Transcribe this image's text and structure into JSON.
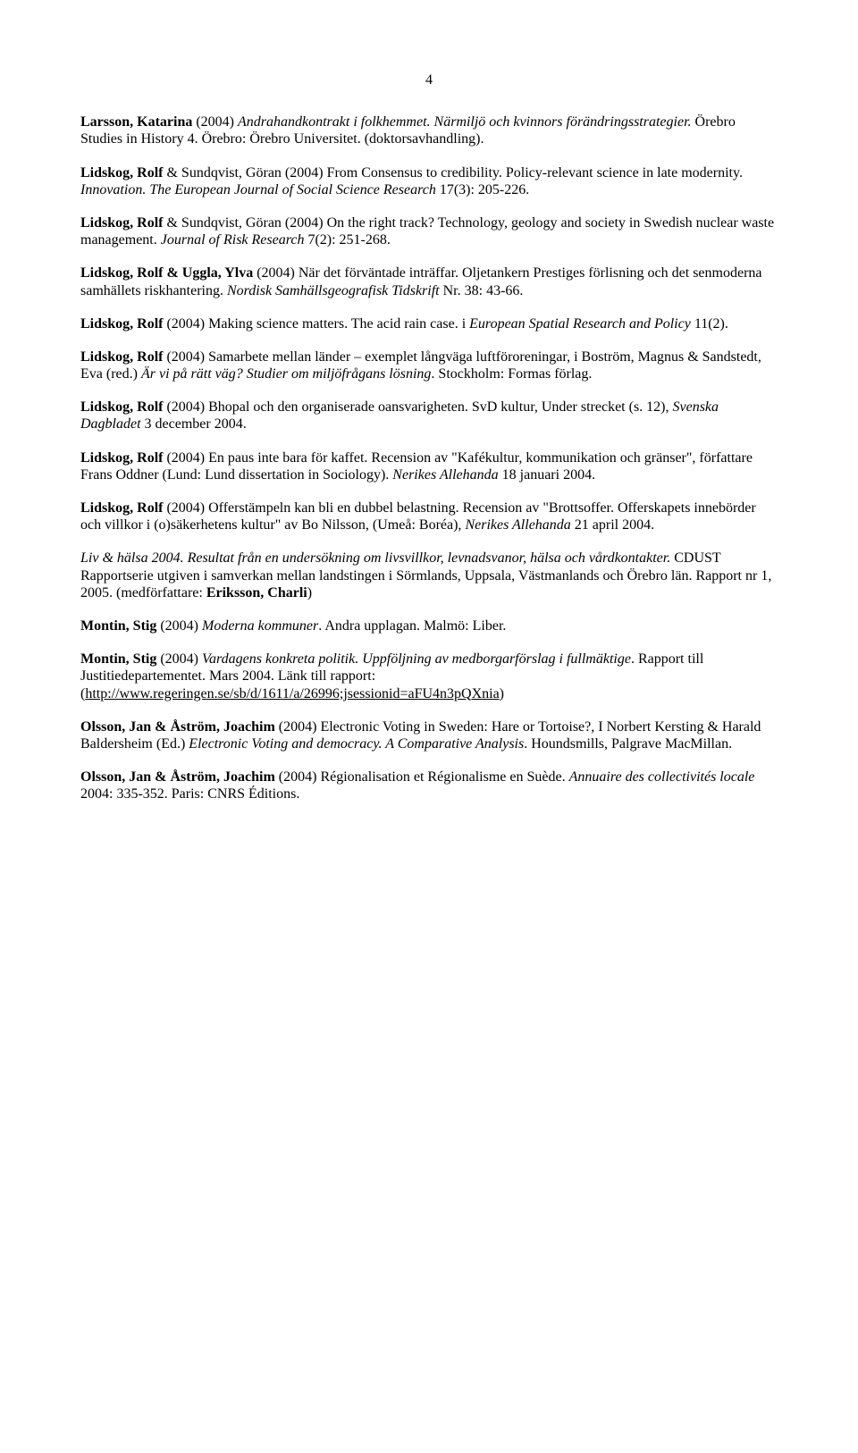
{
  "page_number": "4",
  "entries": [
    {
      "segments": [
        {
          "text": "Larsson, Katarina",
          "b": true
        },
        {
          "text": " (2004) "
        },
        {
          "text": "Andrahandkontrakt i folkhemmet. Närmiljö och kvinnors förändringsstrategier.",
          "i": true
        },
        {
          "text": " Örebro Studies in History 4. Örebro: Örebro Universitet. (doktorsavhandling)."
        }
      ]
    },
    {
      "segments": [
        {
          "text": "Lidskog, Rolf",
          "b": true
        },
        {
          "text": " & Sundqvist, Göran (2004) From Consensus to credibility. Policy-relevant science in late modernity. "
        },
        {
          "text": "Innovation. The European Journal of Social Science Research",
          "i": true
        },
        {
          "text": " 17(3): 205-226."
        }
      ]
    },
    {
      "segments": [
        {
          "text": "Lidskog, Rolf",
          "b": true
        },
        {
          "text": " & Sundqvist, Göran (2004) On the right track? Technology, geology and society in Swedish nuclear waste management. "
        },
        {
          "text": "Journal of Risk Research",
          "i": true
        },
        {
          "text": " 7(2): 251-268."
        }
      ]
    },
    {
      "segments": [
        {
          "text": "Lidskog, Rolf & Uggla, Ylva",
          "b": true
        },
        {
          "text": " (2004) När det förväntade inträffar. Oljetankern Prestiges förlisning och det senmoderna samhällets riskhantering. "
        },
        {
          "text": "Nordisk Samhällsgeografisk Tidskrift",
          "i": true
        },
        {
          "text": " Nr. 38: 43-66."
        }
      ]
    },
    {
      "segments": [
        {
          "text": "Lidskog, Rolf",
          "b": true
        },
        {
          "text": " (2004) Making science matters. The acid rain case. i "
        },
        {
          "text": "European Spatial Research and Policy",
          "i": true
        },
        {
          "text": " 11(2)."
        }
      ]
    },
    {
      "segments": [
        {
          "text": "Lidskog, Rolf",
          "b": true
        },
        {
          "text": " (2004) Samarbete mellan länder – exemplet långväga luftföroreningar, i Boström, Magnus & Sandstedt, Eva (red.) "
        },
        {
          "text": "Är vi på rätt väg? Studier om miljöfrågans lösning",
          "i": true
        },
        {
          "text": ". Stockholm: Formas förlag."
        }
      ]
    },
    {
      "segments": [
        {
          "text": "Lidskog, Rolf",
          "b": true
        },
        {
          "text": " (2004) Bhopal och den organiserade oansvarigheten. SvD kultur, Under strecket (s. 12), "
        },
        {
          "text": "Svenska Dagbladet",
          "i": true
        },
        {
          "text": " 3 december 2004."
        }
      ]
    },
    {
      "segments": [
        {
          "text": "Lidskog, Rolf",
          "b": true
        },
        {
          "text": " (2004) En paus inte bara för kaffet. Recension av \"Kafékultur, kommunikation och gränser\", författare Frans Oddner (Lund: Lund dissertation in Sociology). "
        },
        {
          "text": "Nerikes Allehanda",
          "i": true
        },
        {
          "text": " 18 januari 2004."
        }
      ]
    },
    {
      "segments": [
        {
          "text": "Lidskog, Rolf",
          "b": true
        },
        {
          "text": " (2004) Offerstämpeln kan bli en dubbel belastning. Recension av \"Brottsoffer. Offerskapets innebörder och villkor i (o)säkerhetens kultur\" av Bo Nilsson, (Umeå: Boréa), "
        },
        {
          "text": "Nerikes Allehanda",
          "i": true
        },
        {
          "text": " 21 april 2004."
        }
      ]
    },
    {
      "segments": [
        {
          "text": "Liv & hälsa 2004. Resultat från en undersökning om livsvillkor, levnadsvanor, hälsa och vårdkontakter.",
          "i": true
        },
        {
          "text": " CDUST Rapportserie utgiven i samverkan mellan landstingen i Sörmlands, Uppsala, Västmanlands och Örebro län. Rapport nr 1, 2005. (medförfattare: "
        },
        {
          "text": "Eriksson, Charli",
          "b": true
        },
        {
          "text": ")"
        }
      ]
    },
    {
      "segments": [
        {
          "text": "Montin, Stig",
          "b": true
        },
        {
          "text": " (2004) "
        },
        {
          "text": "Moderna kommuner",
          "i": true
        },
        {
          "text": ". Andra upplagan. Malmö: Liber."
        }
      ]
    },
    {
      "segments": [
        {
          "text": "Montin, Stig",
          "b": true
        },
        {
          "text": " (2004) "
        },
        {
          "text": "Vardagens konkreta politik. Uppföljning av medborgarförslag i fullmäktige",
          "i": true
        },
        {
          "text": ". Rapport till Justitiedepartementet. Mars 2004. Länk till rapport: ("
        },
        {
          "text": "http://www.regeringen.se/sb/d/1611/a/26996;jsessionid=aFU4n3pQXnia",
          "u": true
        },
        {
          "text": ")"
        }
      ]
    },
    {
      "segments": [
        {
          "text": "Olsson, Jan & Åström, Joachim",
          "b": true
        },
        {
          "text": " (2004) Electronic Voting in Sweden: Hare or Tortoise?, I Norbert Kersting & Harald Baldersheim (Ed.) "
        },
        {
          "text": "Electronic Voting and democracy. A Comparative Analysis",
          "i": true
        },
        {
          "text": ". Houndsmills, Palgrave MacMillan."
        }
      ]
    },
    {
      "segments": [
        {
          "text": "Olsson, Jan & Åström, Joachim",
          "b": true
        },
        {
          "text": " (2004) Régionalisation et Régionalisme en Suède. "
        },
        {
          "text": "Annuaire des collectivités locale",
          "i": true
        },
        {
          "text": " 2004: 335-352. Paris: CNRS Éditions."
        }
      ]
    }
  ]
}
